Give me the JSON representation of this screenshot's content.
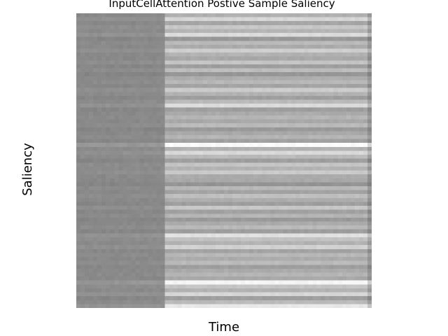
{
  "chart_data": {
    "type": "heatmap",
    "title": "InputCellAttention Postive Sample Saliency",
    "xlabel": "Time",
    "ylabel": "Saliency",
    "colormap": "gray",
    "rows": 75,
    "columns": 70,
    "background_color": "#ffffff",
    "regions": [
      {
        "name": "early time steps",
        "x_start": 0,
        "x_end": 21,
        "base_gray": 0.54
      },
      {
        "name": "later time steps",
        "x_start": 21,
        "x_end": 70,
        "base_gray": 0.69
      }
    ],
    "row_intensity": [
      0.69,
      0.84,
      0.65,
      0.78,
      0.71,
      0.86,
      0.6,
      0.73,
      0.67,
      0.81,
      0.7,
      0.66,
      0.77,
      0.62,
      0.74,
      0.59,
      0.68,
      0.72,
      0.64,
      0.8,
      0.7,
      0.62,
      0.73,
      0.86,
      0.62,
      0.67,
      0.71,
      0.66,
      0.73,
      0.6,
      0.66,
      0.71,
      0.63,
      0.98,
      0.7,
      0.85,
      0.73,
      0.62,
      0.77,
      0.7,
      0.79,
      0.67,
      0.66,
      0.58,
      0.72,
      0.64,
      0.75,
      0.68,
      0.62,
      0.78,
      0.63,
      0.71,
      0.6,
      0.67,
      0.73,
      0.62,
      0.88,
      0.76,
      0.7,
      0.82,
      0.64,
      0.72,
      0.67,
      0.73,
      0.62,
      0.67,
      0.71,
      0.66,
      0.96,
      0.77,
      0.7,
      0.84,
      0.62,
      0.73,
      0.91
    ]
  }
}
